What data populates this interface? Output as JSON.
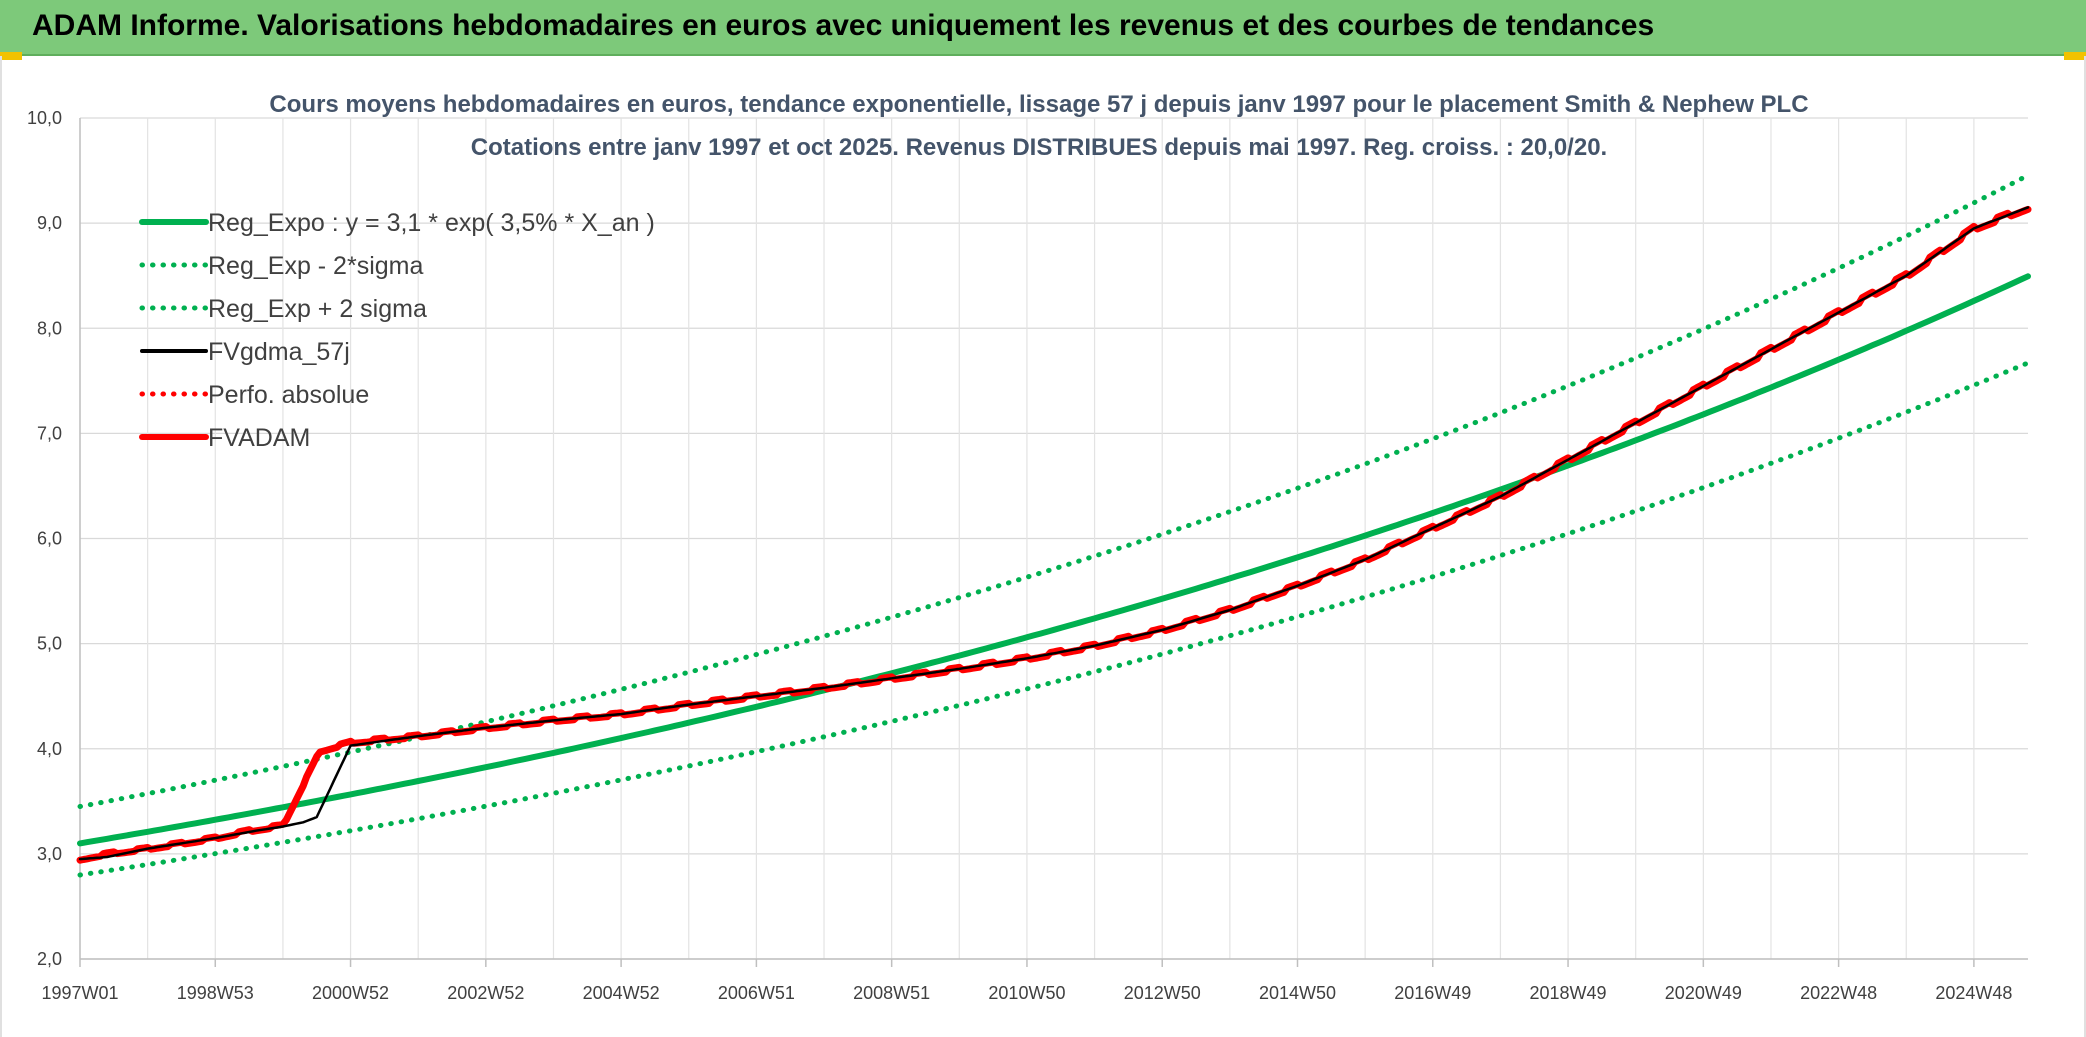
{
  "banner": {
    "title": "ADAM Informe. Valorisations hebdomadaires en euros avec uniquement les revenus et des courbes de tendances",
    "background": "#7dc97a"
  },
  "chart_data": {
    "type": "line",
    "title_line1": "Cours moyens hebdomadaires en euros, tendance exponentielle, lissage 57 j depuis janv 1997 pour le placement Smith & Nephew PLC",
    "title_line2": "Cotations entre janv 1997 et oct 2025. Revenus DISTRIBUES depuis mai 1997. Reg. croiss. : 20,0/20.",
    "ylim": [
      2.0,
      10.0
    ],
    "yticks": [
      "2,0",
      "3,0",
      "4,0",
      "5,0",
      "6,0",
      "7,0",
      "8,0",
      "9,0",
      "10,0"
    ],
    "xlim": [
      1997.0,
      2025.8
    ],
    "xticks": [
      {
        "label": "1997W01",
        "x": 1997.0
      },
      {
        "label": "1998W53",
        "x": 1999.0
      },
      {
        "label": "2000W52",
        "x": 2001.0
      },
      {
        "label": "2002W52",
        "x": 2003.0
      },
      {
        "label": "2004W52",
        "x": 2005.0
      },
      {
        "label": "2006W51",
        "x": 2007.0
      },
      {
        "label": "2008W51",
        "x": 2009.0
      },
      {
        "label": "2010W50",
        "x": 2011.0
      },
      {
        "label": "2012W50",
        "x": 2013.0
      },
      {
        "label": "2014W50",
        "x": 2015.0
      },
      {
        "label": "2016W49",
        "x": 2017.0
      },
      {
        "label": "2018W49",
        "x": 2019.0
      },
      {
        "label": "2020W49",
        "x": 2021.0
      },
      {
        "label": "2022W48",
        "x": 2023.0
      },
      {
        "label": "2024W48",
        "x": 2025.0
      }
    ],
    "grid": true,
    "legend_position": "top-left",
    "regression": {
      "a": 3.1,
      "rate": 0.035
    },
    "series": [
      {
        "name": "Reg_Expo : y = 3,1 * exp( 3,5% *  X_an )",
        "color": "#00b050",
        "style": "solid",
        "x": [
          1997.0,
          2000.0,
          2003.0,
          2006.0,
          2009.0,
          2012.0,
          2015.0,
          2018.0,
          2021.0,
          2024.0,
          2025.8
        ],
        "values": [
          3.1,
          3.45,
          3.84,
          4.27,
          4.74,
          5.28,
          5.86,
          6.52,
          7.25,
          8.07,
          8.62
        ]
      },
      {
        "name": "Reg_Exp - 2*sigma",
        "color": "#00b050",
        "style": "dotted",
        "x": [
          1997.0,
          2000.0,
          2003.0,
          2006.0,
          2009.0,
          2012.0,
          2015.0,
          2018.0,
          2021.0,
          2024.0,
          2025.8
        ],
        "values": [
          2.8,
          3.11,
          3.46,
          3.85,
          4.28,
          4.76,
          5.29,
          5.88,
          6.54,
          7.27,
          7.77
        ]
      },
      {
        "name": "Reg_Exp + 2 sigma",
        "color": "#00b050",
        "style": "dotted",
        "x": [
          1997.0,
          2000.0,
          2003.0,
          2006.0,
          2009.0,
          2012.0,
          2015.0,
          2018.0,
          2021.0,
          2024.0,
          2025.8
        ],
        "values": [
          3.45,
          3.84,
          4.27,
          4.75,
          5.28,
          5.87,
          6.53,
          7.26,
          8.07,
          8.98,
          9.6
        ]
      },
      {
        "name": "FVgdma_57j",
        "color": "#000000",
        "style": "solid",
        "smoothed": true,
        "x": [
          1997.0,
          1997.4,
          1998.0,
          1999.0,
          1999.6,
          2000.0,
          2000.3,
          2000.5,
          2001.0,
          2002.0,
          2003.0,
          2004.0,
          2005.0,
          2006.0,
          2007.0,
          2008.0,
          2009.0,
          2010.0,
          2011.0,
          2012.0,
          2013.0,
          2014.0,
          2015.0,
          2016.0,
          2017.0,
          2018.0,
          2019.0,
          2020.0,
          2021.0,
          2022.0,
          2023.0,
          2024.0,
          2025.0,
          2025.8
        ],
        "values": [
          2.95,
          2.97,
          3.05,
          3.15,
          3.22,
          3.26,
          3.3,
          3.35,
          4.03,
          4.12,
          4.2,
          4.27,
          4.33,
          4.42,
          4.5,
          4.58,
          4.67,
          4.76,
          4.86,
          4.98,
          5.13,
          5.32,
          5.55,
          5.8,
          6.1,
          6.4,
          6.75,
          7.1,
          7.45,
          7.8,
          8.15,
          8.5,
          8.95,
          9.15
        ]
      },
      {
        "name": "Perfo. absolue",
        "color": "#ff0000",
        "style": "dotted",
        "x": [],
        "values": []
      },
      {
        "name": "FVADAM",
        "color": "#ff0000",
        "style": "solid",
        "step": true,
        "x": [
          1997.0,
          1997.4,
          1998.0,
          1998.5,
          1999.0,
          1999.5,
          2000.0,
          2000.55,
          2001.0,
          2002.0,
          2003.0,
          2004.0,
          2005.0,
          2006.0,
          2007.0,
          2008.0,
          2009.0,
          2010.0,
          2011.0,
          2012.0,
          2013.0,
          2014.0,
          2015.0,
          2016.0,
          2017.0,
          2018.0,
          2019.0,
          2020.0,
          2021.0,
          2022.0,
          2023.0,
          2024.0,
          2025.0,
          2025.8
        ],
        "values": [
          2.95,
          3.0,
          3.05,
          3.1,
          3.15,
          3.22,
          3.27,
          3.98,
          4.06,
          4.12,
          4.2,
          4.27,
          4.33,
          4.42,
          4.5,
          4.58,
          4.67,
          4.76,
          4.86,
          4.98,
          5.13,
          5.32,
          5.55,
          5.8,
          6.1,
          6.4,
          6.75,
          7.1,
          7.45,
          7.8,
          8.15,
          8.5,
          8.95,
          9.15
        ]
      }
    ]
  }
}
